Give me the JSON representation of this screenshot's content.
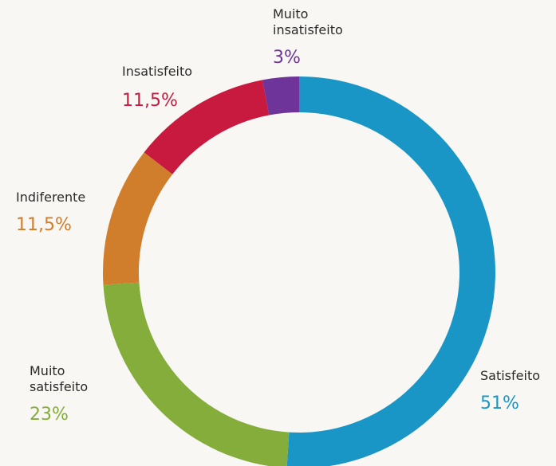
{
  "chart_data": {
    "type": "donut",
    "categories": [
      "Satisfeito",
      "Muito satisfeito",
      "Indiferente",
      "Insatisfeito",
      "Muito insatisfeito"
    ],
    "values": [
      51,
      23,
      11.5,
      11.5,
      3
    ],
    "value_labels": [
      "51%",
      "23%",
      "11,5%",
      "11,5%",
      "3%"
    ],
    "colors": [
      "#1a96c6",
      "#84ad3c",
      "#d07d2c",
      "#c8193f",
      "#6e3499"
    ]
  }
}
